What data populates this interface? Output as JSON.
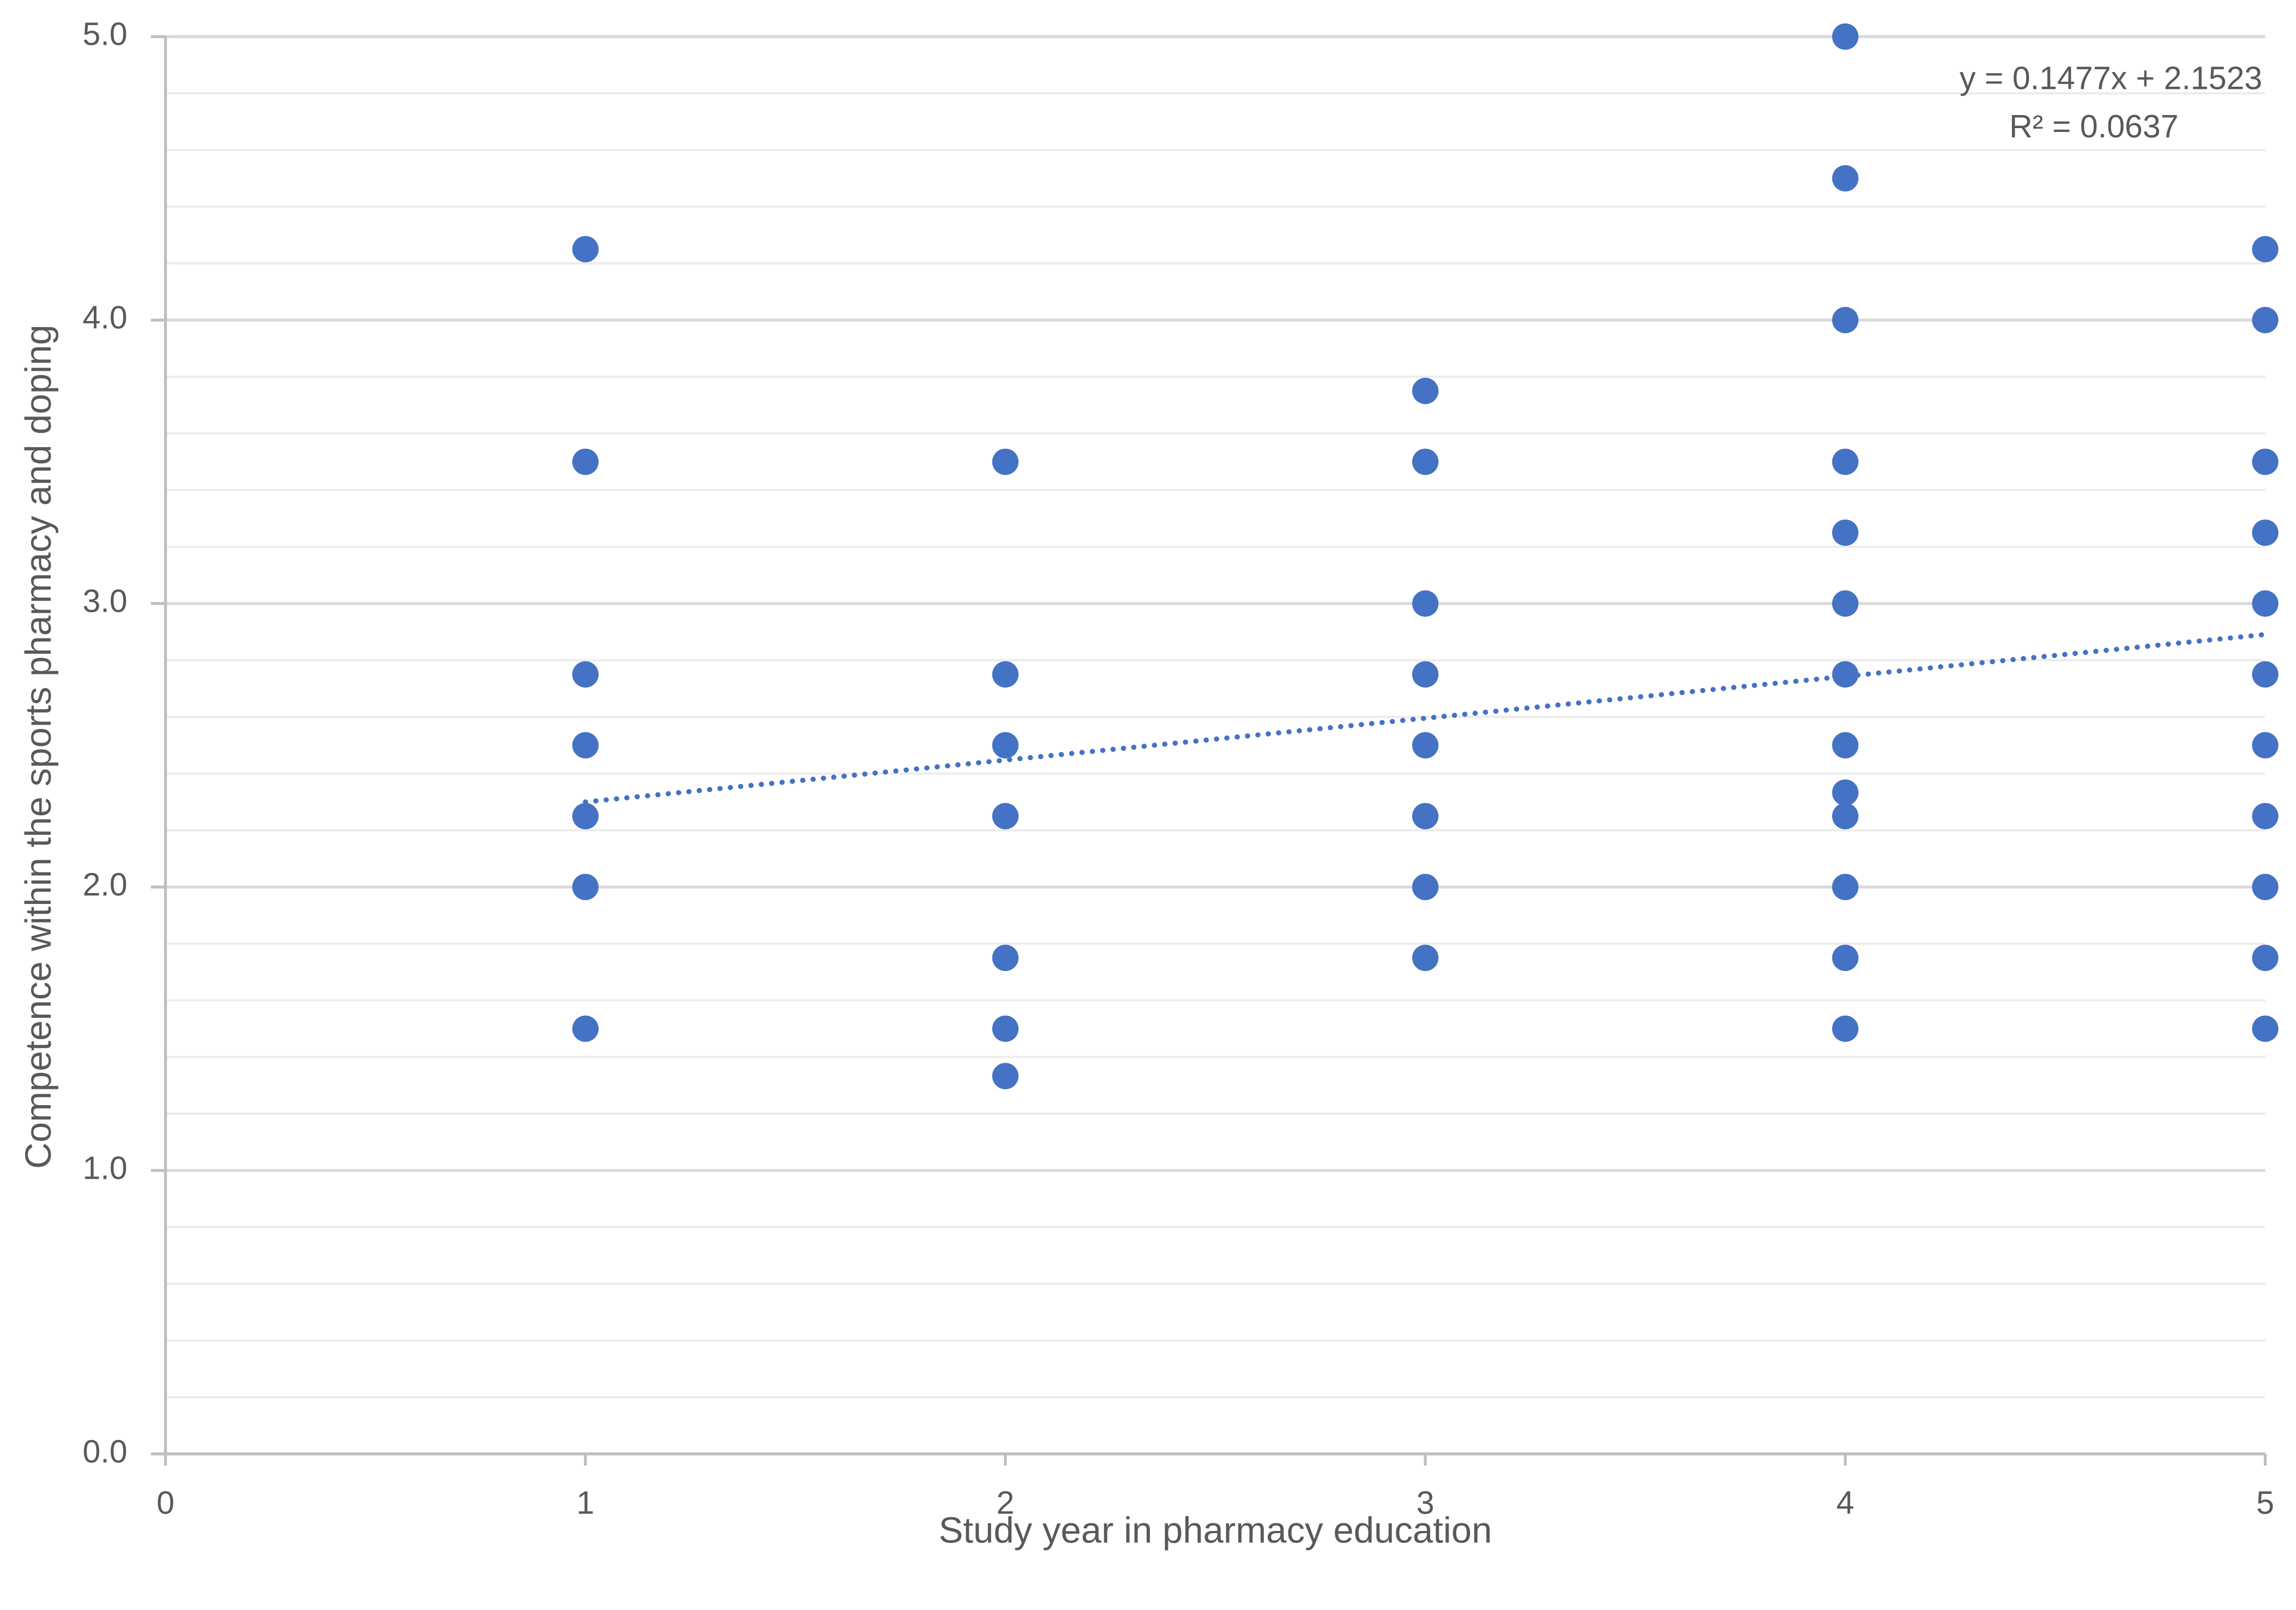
{
  "chart_data": {
    "type": "scatter",
    "x_label": "Study year in pharmacy education",
    "y_label": "Competence within the sports pharmacy and doping",
    "series": [
      {
        "color": "#4472c4",
        "x": [
          1,
          1,
          1,
          1,
          1,
          1,
          1,
          2,
          2,
          2,
          2,
          2,
          2,
          2,
          3,
          3,
          3,
          3,
          3,
          3,
          3,
          3,
          4,
          4,
          4,
          4,
          4,
          4,
          4,
          4,
          4,
          4,
          4,
          4,
          4,
          5,
          5,
          5,
          5,
          5,
          5,
          5,
          5,
          5,
          5,
          5
        ],
        "values": [
          4.25,
          3.5,
          2.75,
          2.5,
          2.25,
          2.0,
          1.5,
          3.5,
          2.75,
          2.5,
          2.25,
          1.75,
          1.5,
          1.333,
          3.75,
          3.5,
          3.0,
          2.75,
          2.5,
          2.25,
          2.0,
          1.75,
          5.0,
          4.5,
          4.0,
          3.5,
          3.25,
          3.0,
          2.75,
          2.5,
          2.333,
          2.25,
          2.0,
          1.75,
          1.5,
          4.25,
          4.0,
          3.5,
          3.25,
          3.0,
          2.75,
          2.5,
          2.25,
          2.0,
          1.75,
          1.5
        ]
      }
    ],
    "trendline": {
      "equation": "y = 0.1477x + 2.1523",
      "r_squared": "R² = 0.0637",
      "slope": 0.1477,
      "intercept": 2.1523,
      "color": "#4472c4",
      "style": "dotted"
    },
    "xlim": [
      0,
      5
    ],
    "xticks": [
      0,
      1,
      2,
      3,
      4,
      5
    ],
    "ylim": [
      0,
      5
    ],
    "yticks": [
      {
        "value": 0,
        "label": "0.0"
      },
      {
        "value": 1,
        "label": "1.0"
      },
      {
        "value": 2,
        "label": "2.0"
      },
      {
        "value": 3,
        "label": "3.0"
      },
      {
        "value": 4,
        "label": "4.0"
      },
      {
        "value": 5,
        "label": "5.0"
      }
    ],
    "grid": true,
    "minor_grid": true
  }
}
